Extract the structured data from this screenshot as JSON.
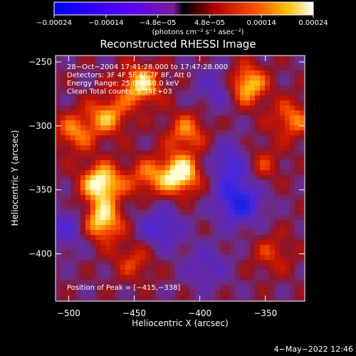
{
  "chart_data": {
    "type": "heatmap",
    "title": "Reconstructed RHESSI Image",
    "xlabel": "Heliocentric X (arcsec)",
    "ylabel": "Heliocentric Y (arcsec)",
    "xlim": [
      -510,
      -320
    ],
    "ylim": [
      -437,
      -245
    ],
    "x_ticks": [
      -500,
      -450,
      -400,
      -350
    ],
    "y_ticks": [
      -250,
      -300,
      -350,
      -400
    ],
    "x_tick_labels": [
      "−500",
      "−450",
      "−400",
      "−350"
    ],
    "y_tick_labels": [
      "−250",
      "−300",
      "−350",
      "−400"
    ],
    "colorbar": {
      "range": [
        -0.00024,
        0.00024
      ],
      "tick_labels": [
        "−0.00024",
        "−0.00014",
        "−4.8e−05",
        "4.8e−05",
        "0.00014",
        "0.00024"
      ],
      "units": "(photons cm⁻² s⁻¹ asec⁻²)"
    },
    "annotations": [
      "28−Oct−2004 17:41:28.000 to 17:47:28.000",
      "Detectors: 3F 4F 5F 6F 7F 8F, Att 0",
      "Energy Range: 25.0 − 50.0 keV",
      "Clean     Total counts: 5.34E+03"
    ],
    "peak_label": "Position of Peak = [−415,−338]",
    "bright_sources": [
      {
        "x": -475,
        "y": -345,
        "value": 0.00024
      },
      {
        "x": -415,
        "y": -338,
        "value": 0.00024
      },
      {
        "x": -365,
        "y": -268,
        "value": 0.00022
      },
      {
        "x": -445,
        "y": -268,
        "value": 0.0002
      },
      {
        "x": -475,
        "y": -375,
        "value": 0.00022
      },
      {
        "x": -470,
        "y": -292,
        "value": 0.00016
      },
      {
        "x": -330,
        "y": -295,
        "value": 0.00014
      },
      {
        "x": -495,
        "y": -305,
        "value": 0.00014
      },
      {
        "x": -410,
        "y": -305,
        "value": 0.00014
      },
      {
        "x": -440,
        "y": -340,
        "value": 0.00012
      },
      {
        "x": -355,
        "y": -330,
        "value": 0.00011
      },
      {
        "x": -450,
        "y": -405,
        "value": 0.0001
      },
      {
        "x": -345,
        "y": -400,
        "value": 9e-05
      }
    ],
    "dark_sources": [
      {
        "x": -370,
        "y": -360,
        "value": -0.00022
      },
      {
        "x": -375,
        "y": -330,
        "value": -0.00016
      },
      {
        "x": -430,
        "y": -380,
        "value": -0.00014
      },
      {
        "x": -385,
        "y": -270,
        "value": -0.00012
      },
      {
        "x": -500,
        "y": -380,
        "value": -0.00012
      },
      {
        "x": -395,
        "y": -410,
        "value": -0.0001
      }
    ]
  },
  "footer": {
    "timestamp": "4−May−2022 12:46"
  }
}
